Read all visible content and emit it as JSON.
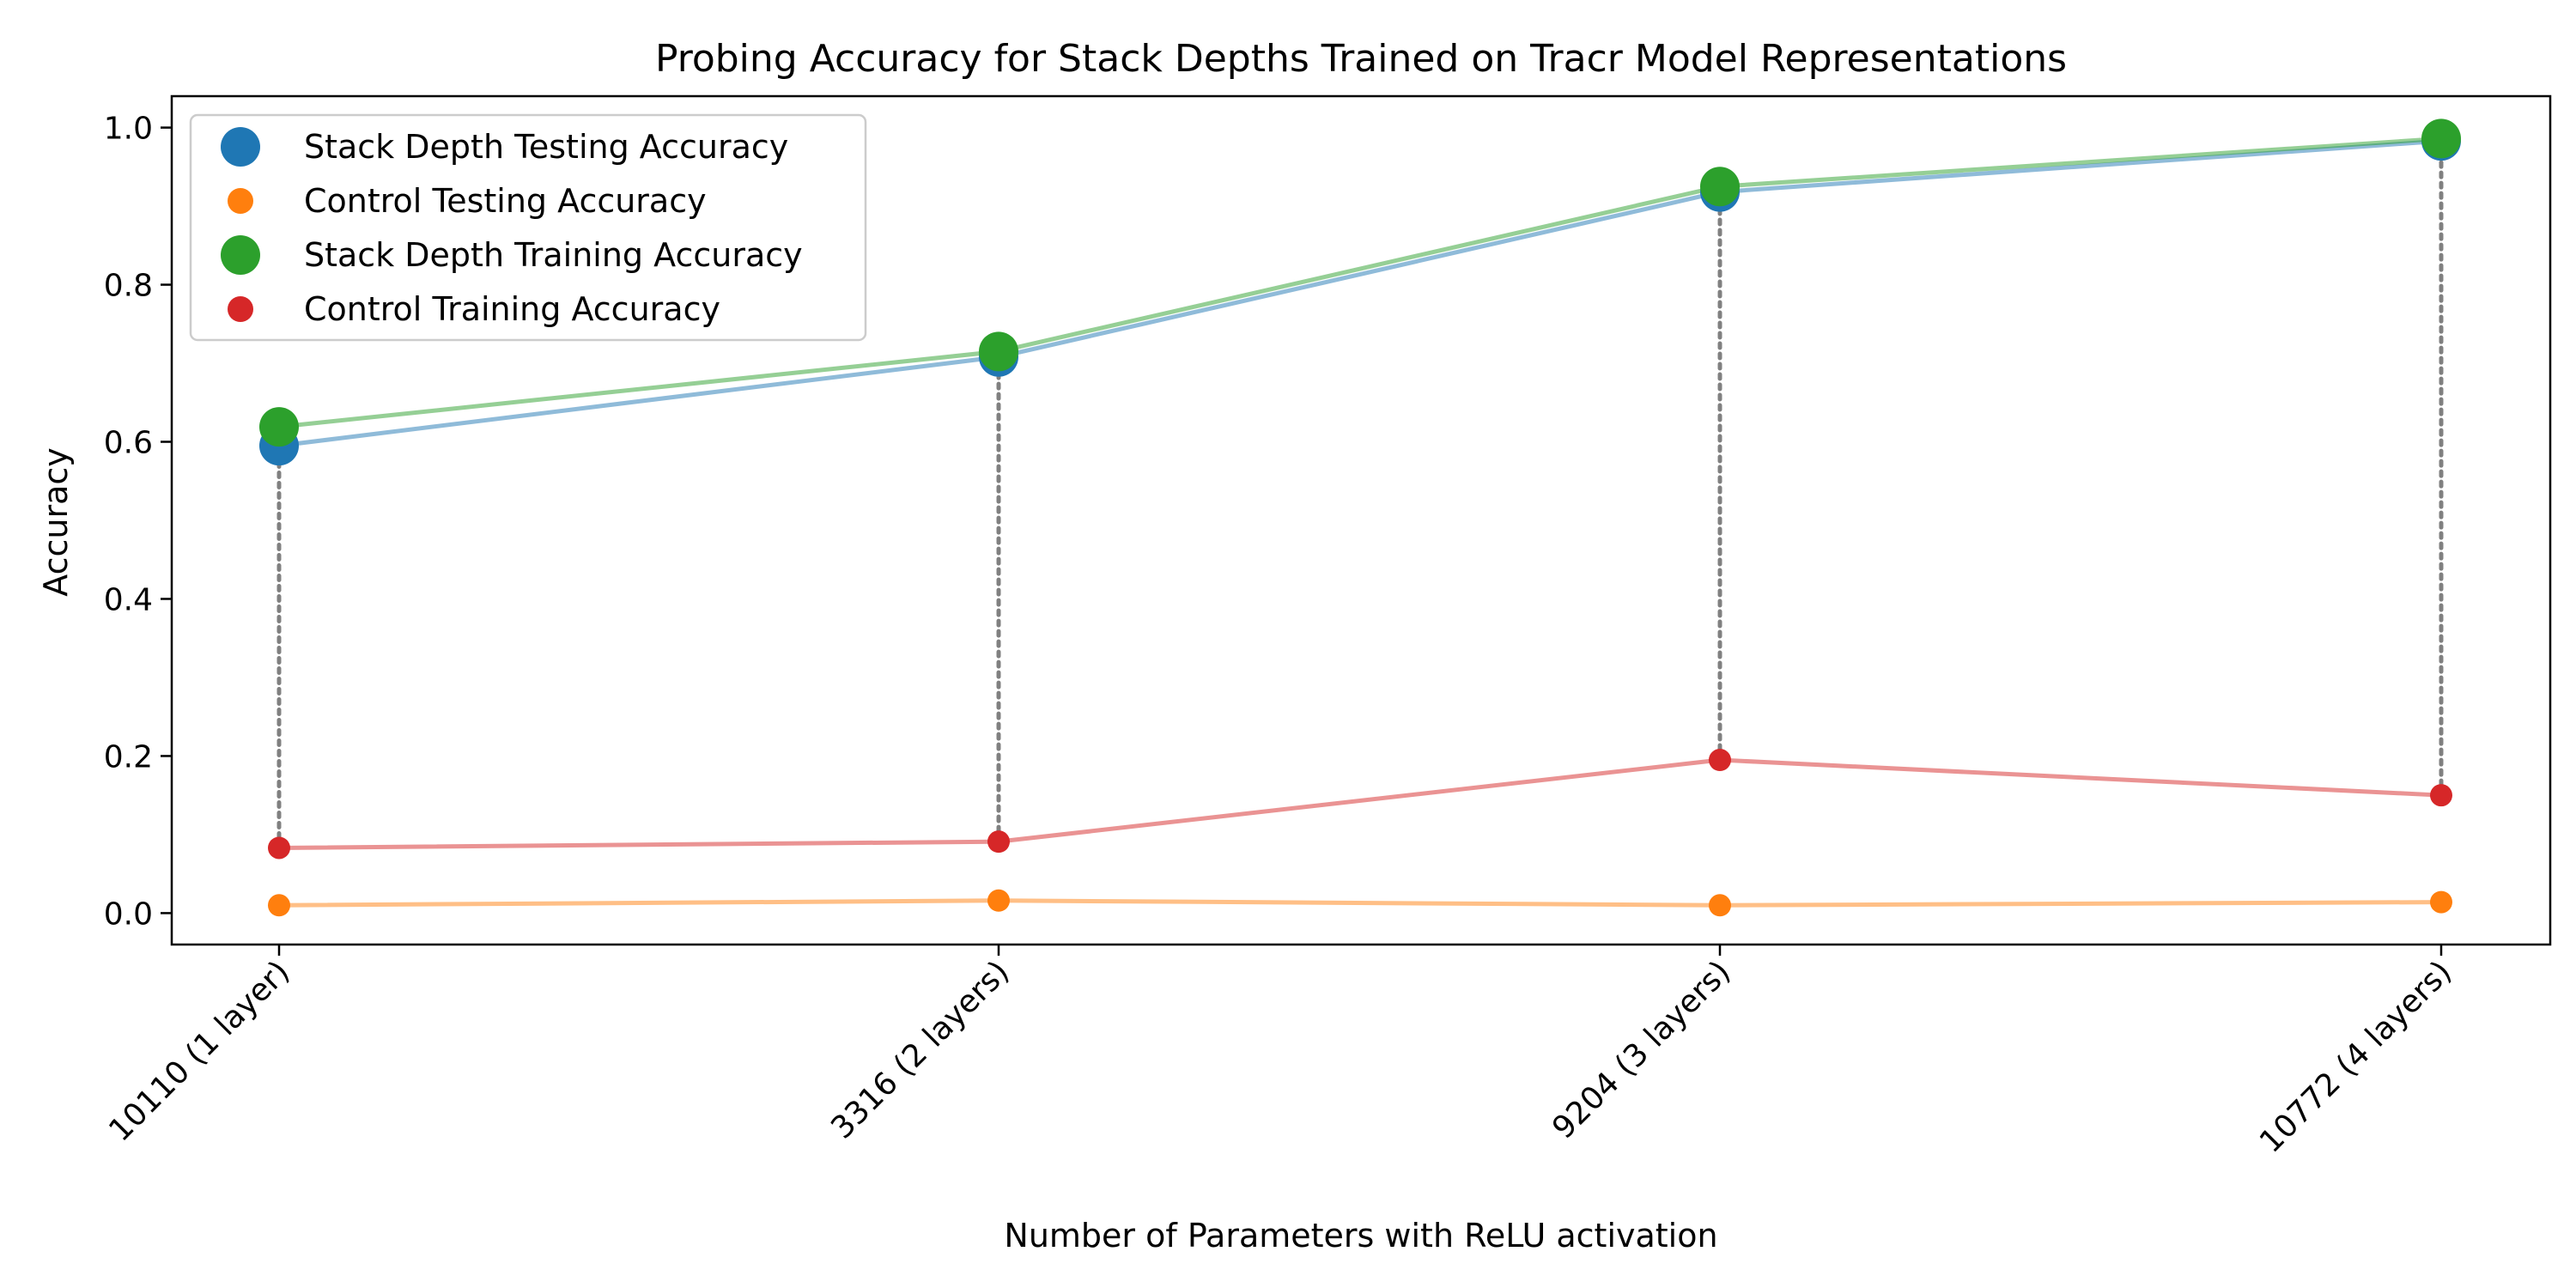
{
  "chart_data": {
    "type": "line",
    "title": "Probing Accuracy for Stack Depths Trained on Tracr Model Representations",
    "xlabel": "Number of Parameters with ReLU activation",
    "ylabel": "Accuracy",
    "categories": [
      "10110 (1 layer)",
      "3316 (2 layers)",
      "9204 (3 layers)",
      "10772 (4 layers)"
    ],
    "ylim": [
      -0.04,
      1.04
    ],
    "yticks": [
      "0.0",
      "0.2",
      "0.4",
      "0.6",
      "0.8",
      "1.0"
    ],
    "grid": false,
    "legend_position": "top-left",
    "connectors": "dotted gray vertical lines from control training to stack depth testing",
    "series": [
      {
        "name": "Stack Depth Testing Accuracy",
        "values": [
          0.595,
          0.708,
          0.918,
          0.983
        ],
        "color": "#1f77b4",
        "marker": "large"
      },
      {
        "name": "Control Testing Accuracy",
        "values": [
          0.01,
          0.016,
          0.01,
          0.014
        ],
        "color": "#ff7f0e",
        "marker": "small"
      },
      {
        "name": "Stack Depth Training Accuracy",
        "values": [
          0.619,
          0.715,
          0.925,
          0.986
        ],
        "color": "#2ca02c",
        "marker": "large"
      },
      {
        "name": "Control Training Accuracy",
        "values": [
          0.083,
          0.091,
          0.195,
          0.15
        ],
        "color": "#d62728",
        "marker": "small"
      }
    ]
  }
}
